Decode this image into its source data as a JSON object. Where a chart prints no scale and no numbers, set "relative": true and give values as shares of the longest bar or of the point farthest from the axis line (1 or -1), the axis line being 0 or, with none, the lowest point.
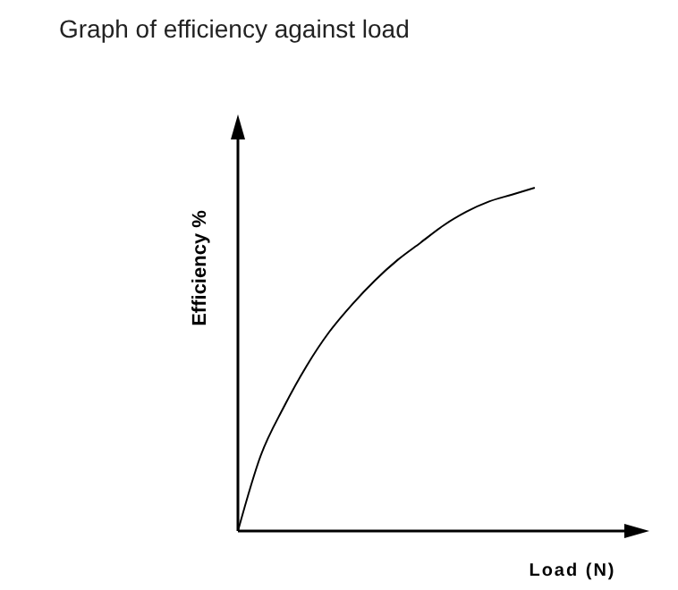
{
  "chart_data": {
    "type": "line",
    "title": "Graph of efficiency against load",
    "xlabel": "Load (N)",
    "ylabel": "Efficiency  %",
    "relative": true,
    "categories": [
      null,
      null,
      null,
      null,
      null,
      null,
      null,
      null,
      null,
      null,
      null,
      null,
      null,
      null,
      null,
      null,
      null,
      null
    ],
    "series": [
      {
        "color": "#000000",
        "values": [
          0,
          0.22,
          0.36,
          0.48,
          0.58,
          0.66,
          0.73,
          0.79,
          0.84,
          0.89,
          0.93,
          0.96,
          0.98,
          1,
          null,
          null,
          null,
          null
        ]
      }
    ],
    "marker": "none",
    "line_style": "solid",
    "grid": false,
    "legend": false
  }
}
